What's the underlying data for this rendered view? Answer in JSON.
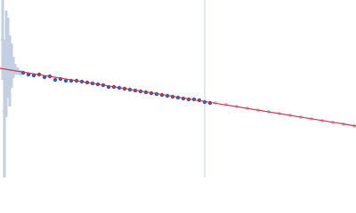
{
  "chart_data": {
    "type": "scatter",
    "xlim": [
      0,
      400
    ],
    "ylim": [
      0,
      200
    ],
    "vline": {
      "x": 230,
      "color": "#c8d0e4"
    },
    "fit": {
      "x": [
        0,
        400
      ],
      "values": [
        123,
        58
      ],
      "color": "#d0344a"
    },
    "series": [
      {
        "color": "#c3cfe3",
        "error_color": "#c3cfe3",
        "x": [
          3,
          5,
          7,
          9,
          11,
          13,
          15,
          17,
          20,
          23
        ],
        "values": [
          155,
          75,
          128,
          135,
          120,
          126,
          124,
          122,
          120,
          118
        ],
        "errors": [
          45,
          80,
          60,
          45,
          40,
          25,
          12,
          6,
          4,
          3
        ]
      },
      {
        "color": "#2f5fad",
        "x": [
          26,
          32,
          38,
          44,
          50,
          56,
          62,
          68,
          74,
          80,
          86,
          92,
          98,
          104,
          110,
          116,
          122,
          128,
          134,
          140,
          146,
          152,
          158,
          164,
          170,
          176,
          182,
          188,
          194,
          200,
          206,
          212,
          218,
          224,
          230,
          236
        ],
        "values": [
          118,
          116,
          115,
          116,
          113,
          114,
          110,
          111,
          109,
          109,
          109,
          108,
          107,
          106,
          105,
          104,
          102,
          102,
          101,
          100,
          99,
          98,
          97,
          96,
          95,
          94,
          93,
          92,
          91,
          90,
          89,
          88,
          88,
          87,
          85,
          84
        ]
      },
      {
        "color": "#c3cfe3",
        "x": [
          242,
          254,
          266,
          278,
          290,
          302,
          314,
          326,
          338,
          350,
          362,
          374,
          386,
          398
        ],
        "values": [
          84,
          82,
          80,
          78,
          76,
          74,
          72,
          70,
          68,
          66,
          64,
          62,
          60,
          58
        ]
      }
    ]
  }
}
